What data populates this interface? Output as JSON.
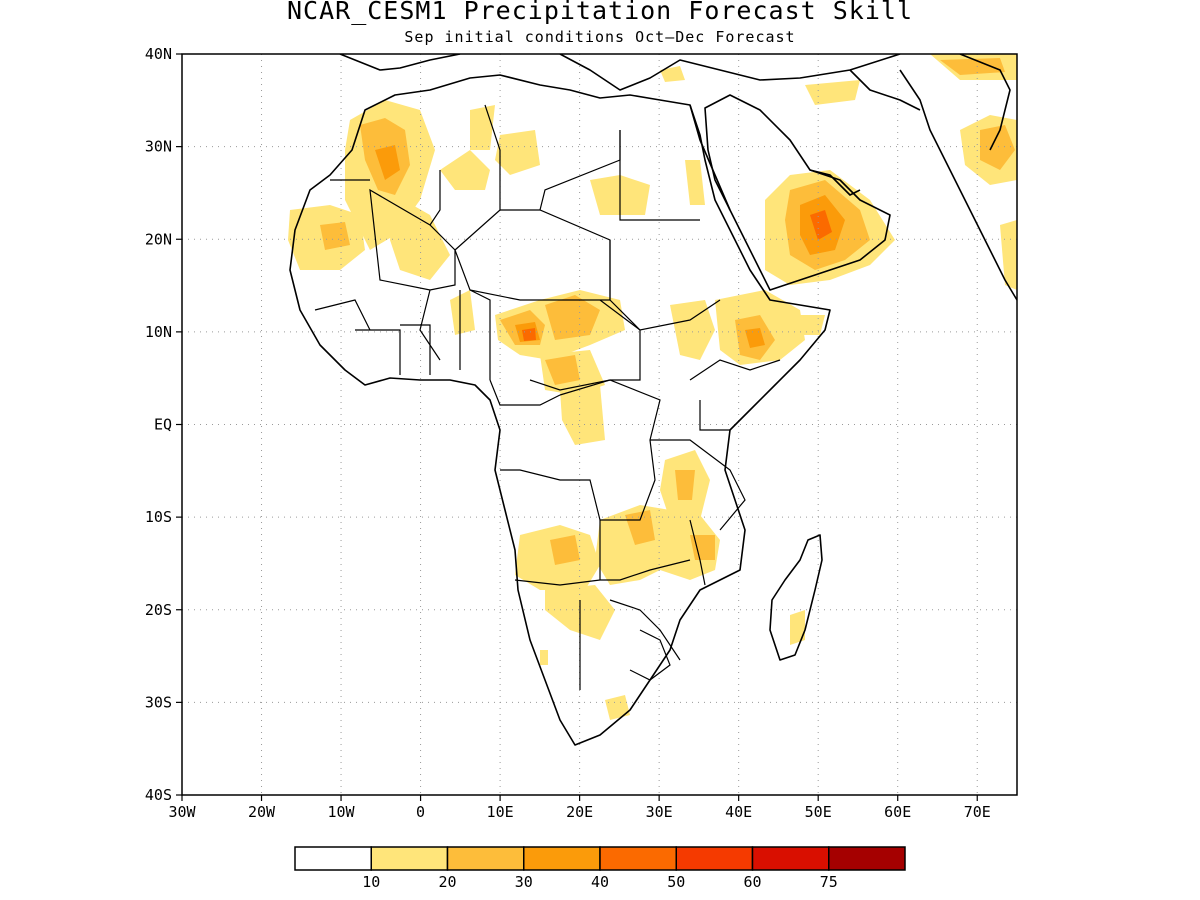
{
  "title": "NCAR_CESM1 Precipitation Forecast Skill",
  "subtitle": "Sep initial conditions  Oct–Dec Forecast",
  "map": {
    "lon_range": [
      -30,
      75
    ],
    "lat_range": [
      -40,
      40
    ],
    "grid": "dotted",
    "lat_labels": [
      "40N",
      "30N",
      "20N",
      "10N",
      "EQ",
      "10S",
      "20S",
      "30S",
      "40S"
    ],
    "lon_labels": [
      "30W",
      "20W",
      "10W",
      "0",
      "10E",
      "20E",
      "30E",
      "40E",
      "50E",
      "60E",
      "70E"
    ]
  },
  "colorbar": {
    "colors": [
      "#ffffff",
      "#ffe57a",
      "#fdbd3a",
      "#fb9b0a",
      "#fb6a00",
      "#f53a00",
      "#d90f00",
      "#a50000"
    ],
    "labels": [
      "10",
      "20",
      "30",
      "40",
      "50",
      "60",
      "75"
    ]
  }
}
